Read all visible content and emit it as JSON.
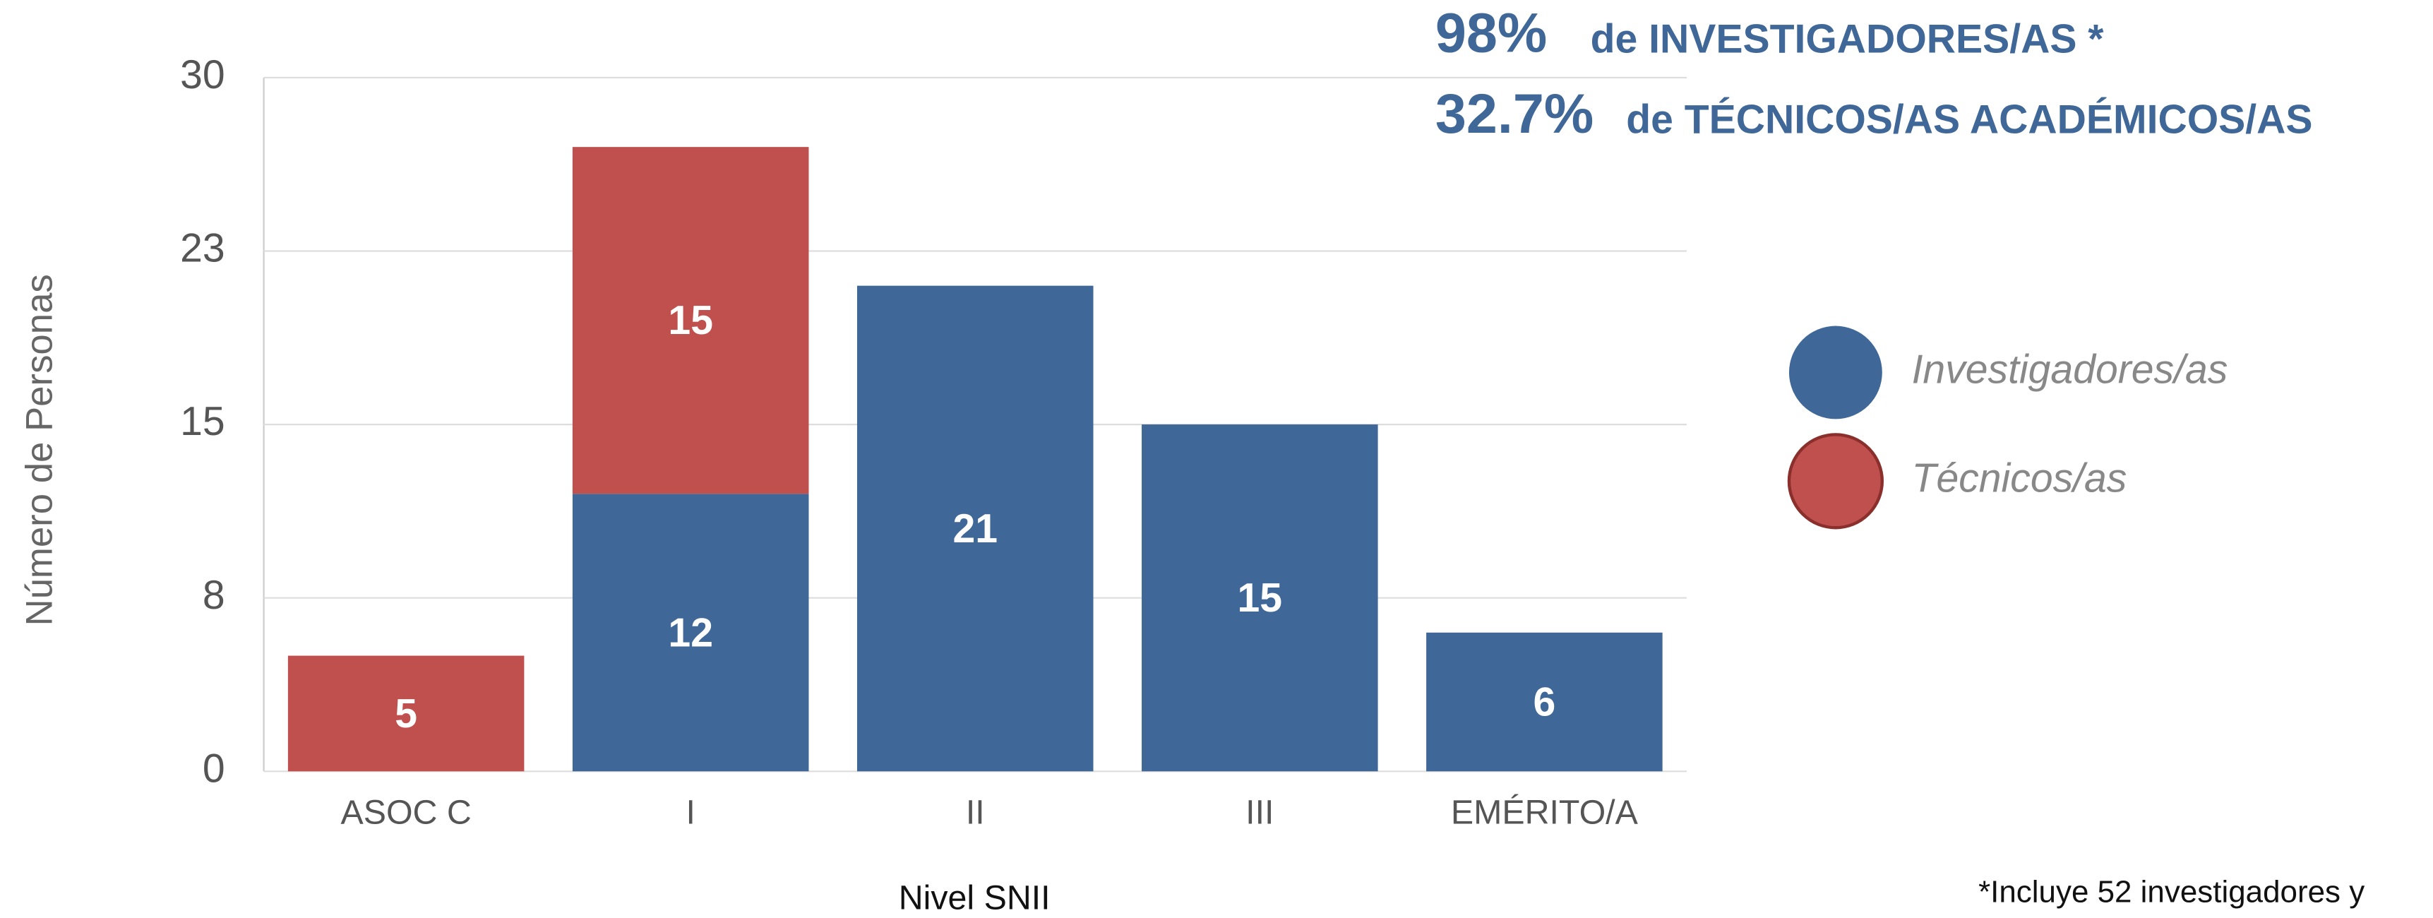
{
  "chart_data": {
    "type": "stacked_bar",
    "headline": [
      {
        "value": "98%",
        "text": "de INVESTIGADORES/AS *"
      },
      {
        "value": "32.7%",
        "text": "de TÉCNICOS/AS ACADÉMICOS/AS"
      }
    ],
    "x_label": "Nivel SNII",
    "y_label": "Número de Personas",
    "footnote": "*Incluye 52 investigadores y",
    "categories": [
      "ASOC C",
      "I",
      "II",
      "III",
      "EMÉRITO/A"
    ],
    "series": [
      {
        "name": "Investigadores/as",
        "color": "#3f6797",
        "values": [
          null,
          12,
          21,
          15,
          6
        ]
      },
      {
        "name": "Técnicos/as",
        "color": "#c0504d",
        "values": [
          5,
          15,
          null,
          null,
          null
        ]
      }
    ],
    "ylim": [
      0,
      30
    ],
    "yticks": [
      0,
      {
        "value": 7.5,
        "label": "8"
      },
      15,
      {
        "value": 22.5,
        "label": "23"
      },
      30
    ],
    "grid": true,
    "legend": "right"
  }
}
